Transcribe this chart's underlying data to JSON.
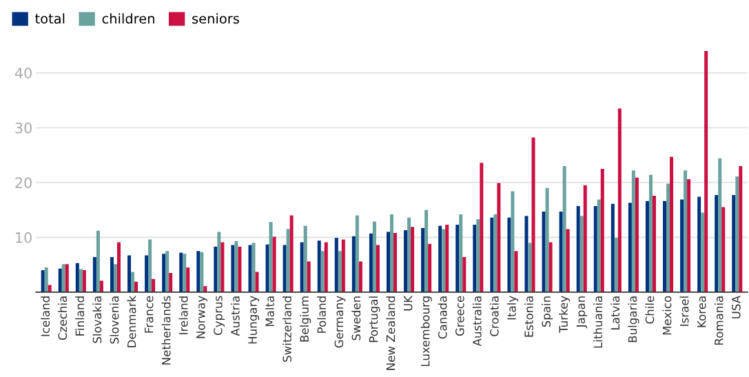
{
  "chart_data": {
    "type": "bar",
    "categories": [
      "Iceland",
      "Czechia",
      "Finland",
      "Slovakia",
      "Slovenia",
      "Denmark",
      "France",
      "Netherlands",
      "Ireland",
      "Norway",
      "Cyprus",
      "Austria",
      "Hungary",
      "Malta",
      "Switzerland",
      "Belgium",
      "Poland",
      "Germany",
      "Sweden",
      "Portugal",
      "New Zealand",
      "UK",
      "Luxembourg",
      "Canada",
      "Greece",
      "Australia",
      "Croatia",
      "Italy",
      "Estonia",
      "Spain",
      "Turkey",
      "Japan",
      "Lithuania",
      "Latvia",
      "Bulgaria",
      "Chile",
      "Mexico",
      "Israel",
      "Korea",
      "Romania",
      "USA"
    ],
    "series": [
      {
        "name": "total",
        "color": "#00337f",
        "values": [
          4.0,
          4.3,
          5.3,
          6.4,
          6.4,
          6.7,
          6.7,
          7.0,
          7.2,
          7.5,
          8.3,
          8.6,
          8.6,
          8.7,
          8.6,
          9.1,
          9.4,
          9.9,
          10.2,
          10.7,
          11.0,
          11.3,
          11.7,
          12.1,
          12.3,
          12.3,
          13.6,
          13.6,
          13.9,
          14.7,
          14.7,
          15.7,
          15.7,
          16.1,
          16.3,
          16.6,
          16.6,
          16.9,
          17.4,
          17.7,
          17.7
        ]
      },
      {
        "name": "children",
        "color": "#6aa2a0",
        "values": [
          4.5,
          5.1,
          4.2,
          11.2,
          5.1,
          3.7,
          9.6,
          7.5,
          7.0,
          7.3,
          11.0,
          9.3,
          9.0,
          12.8,
          11.5,
          12.1,
          7.5,
          7.5,
          14.0,
          12.9,
          14.2,
          13.6,
          15.0,
          11.5,
          14.2,
          13.3,
          14.2,
          18.4,
          9.0,
          19.0,
          23.0,
          13.9,
          16.9,
          9.9,
          22.2,
          21.4,
          19.8,
          22.2,
          14.5,
          24.4,
          21.1
        ]
      },
      {
        "name": "seniors",
        "color": "#cc1142",
        "values": [
          1.3,
          5.1,
          4.0,
          2.1,
          9.1,
          1.9,
          2.4,
          3.5,
          4.5,
          1.1,
          9.1,
          8.3,
          3.7,
          10.1,
          14.0,
          5.6,
          9.1,
          9.6,
          5.6,
          8.6,
          10.8,
          11.9,
          8.8,
          12.3,
          6.4,
          23.6,
          19.9,
          7.5,
          28.2,
          9.1,
          11.5,
          19.5,
          22.5,
          33.5,
          20.9,
          17.6,
          24.7,
          20.6,
          44.0,
          15.5,
          23.0
        ]
      }
    ],
    "ylim": [
      0,
      44
    ],
    "yticks": [
      10,
      20,
      30,
      40
    ],
    "grid": "y",
    "legend": "top left"
  }
}
